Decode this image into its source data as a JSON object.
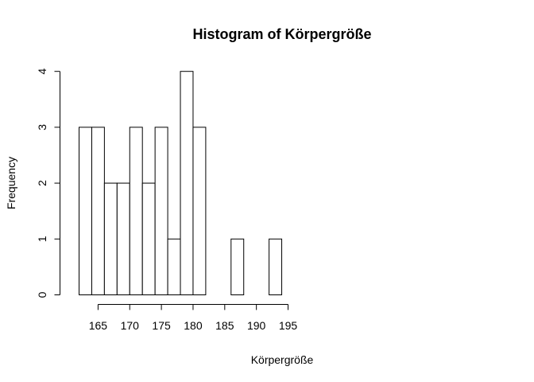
{
  "chart_data": {
    "type": "bar",
    "title": "Histogram of Körpergröße",
    "xlabel": "Körpergröße",
    "ylabel": "Frequency",
    "bin_edges": [
      162,
      164,
      166,
      168,
      170,
      172,
      174,
      176,
      178,
      180,
      182,
      184,
      186,
      188,
      190,
      192,
      194
    ],
    "values": [
      3,
      3,
      2,
      2,
      3,
      2,
      3,
      1,
      4,
      3,
      0,
      0,
      1,
      0,
      0,
      1
    ],
    "xlim": [
      162,
      195
    ],
    "ylim": [
      0,
      4
    ],
    "x_ticks": [
      165,
      170,
      175,
      180,
      185,
      190,
      195
    ],
    "y_ticks": [
      0,
      1,
      2,
      3,
      4
    ],
    "x_tick_labels": [
      "165",
      "170",
      "175",
      "180",
      "185",
      "190",
      "195"
    ],
    "y_tick_labels": [
      "0",
      "1",
      "2",
      "3",
      "4"
    ],
    "grid": false,
    "bar_fill": "#ffffff",
    "bar_stroke": "#000000"
  }
}
